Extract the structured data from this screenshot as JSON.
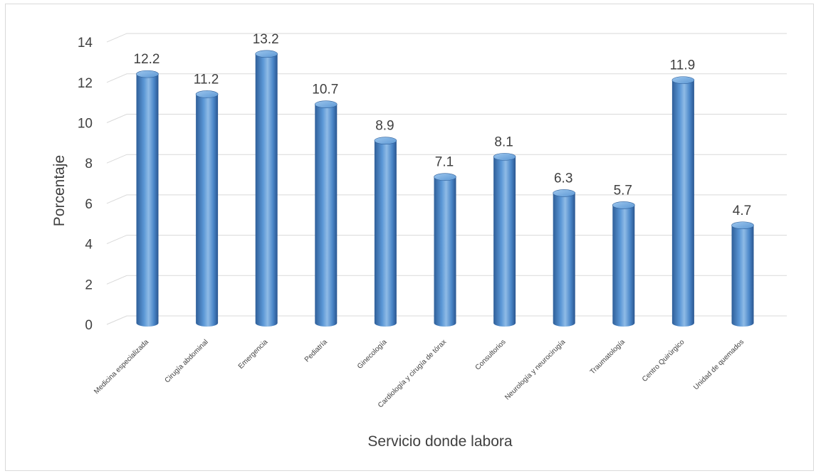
{
  "chart_data": {
    "type": "bar",
    "categories": [
      "Medicina especializada",
      "Cirugía abdominal",
      "Emergencia",
      "Pediatría",
      "Ginecología",
      "Cardiología y cirugía de tórax",
      "Consultorios",
      "Neurología y neurocirugía",
      "Traumatología",
      "Centro Quirúrgico",
      "Unidad de quemados"
    ],
    "values": [
      12.2,
      11.2,
      13.2,
      10.7,
      8.9,
      7.1,
      8.1,
      6.3,
      5.7,
      11.9,
      4.7
    ],
    "data_labels": [
      "12.2",
      "11.2",
      "13.2",
      "10.7",
      "8.9",
      "7.1",
      "8.1",
      "6.3",
      "5.7",
      "11.9",
      "4.7"
    ],
    "title": "",
    "xlabel": "Servicio donde labora",
    "ylabel": "Porcentaje",
    "ylim": [
      0,
      14
    ],
    "yticks": [
      0,
      2,
      4,
      6,
      8,
      10,
      12,
      14
    ],
    "grid": true,
    "style": "3d-cylinder",
    "colors": {
      "bar": "#4a86c8",
      "bar_dark": "#2f5f99",
      "bar_light": "#8fbbe6",
      "grid": "#d9d9d9",
      "text": "#404040"
    }
  }
}
